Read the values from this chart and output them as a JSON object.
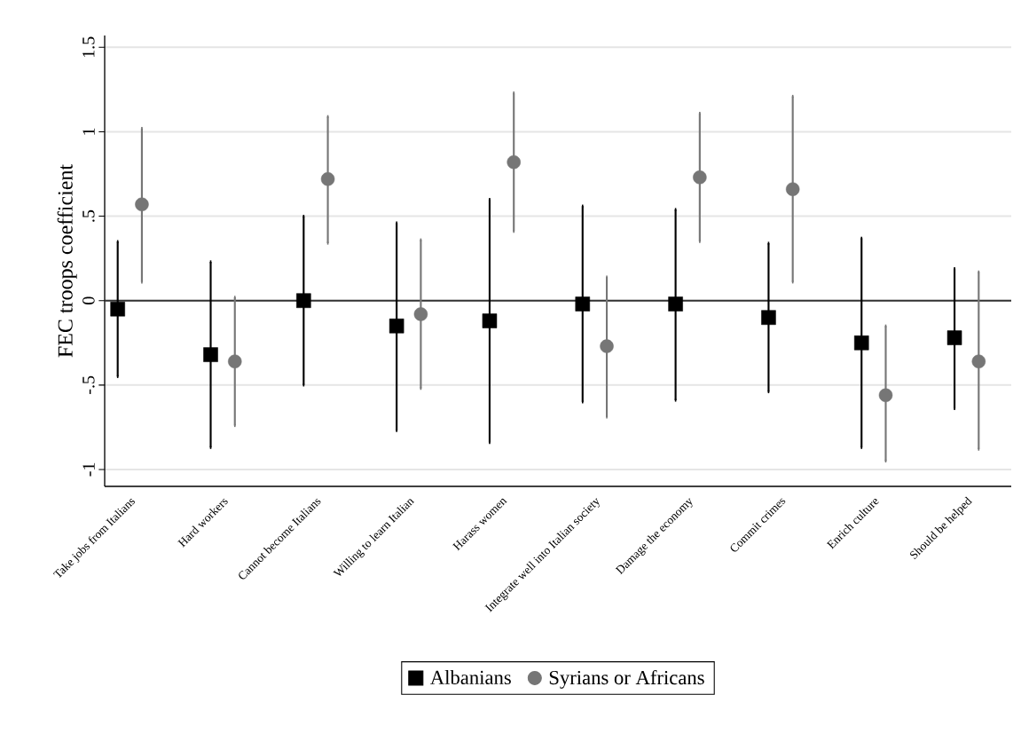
{
  "chart_data": {
    "type": "scatter",
    "categories": [
      "Take jobs from Italians",
      "Hard workers",
      "Cannot become Italians",
      "Willing to learn Italian",
      "Harass women",
      "Integrate well into Italian society",
      "Damage the economy",
      "Commit crimes",
      "Enrich culture",
      "Should be helped"
    ],
    "ylabel": "FEC troops coefficient",
    "ylim": [
      -1.1,
      1.57
    ],
    "yticks": [
      {
        "value": -1,
        "label": "-1"
      },
      {
        "value": -0.5,
        "label": "-.5"
      },
      {
        "value": 0,
        "label": "0"
      },
      {
        "value": 0.5,
        "label": ".5"
      },
      {
        "value": 1,
        "label": "1"
      },
      {
        "value": 1.5,
        "label": "1.5"
      }
    ],
    "grid": "y",
    "legend": "bottom",
    "ref_lines": [
      {
        "axis": "y",
        "value": 0,
        "color": "#333333"
      }
    ],
    "series": [
      {
        "name": "Albanians",
        "color": "#000000",
        "marker": "square",
        "values": [
          -0.05,
          -0.32,
          0.0,
          -0.15,
          -0.12,
          -0.02,
          -0.02,
          -0.1,
          -0.25,
          -0.22
        ],
        "errors": [
          [
            -0.45,
            0.35
          ],
          [
            -0.87,
            0.23
          ],
          [
            -0.5,
            0.5
          ],
          [
            -0.77,
            0.46
          ],
          [
            -0.84,
            0.6
          ],
          [
            -0.6,
            0.56
          ],
          [
            -0.59,
            0.54
          ],
          [
            -0.54,
            0.34
          ],
          [
            -0.87,
            0.37
          ],
          [
            -0.64,
            0.19
          ]
        ]
      },
      {
        "name": "Syrians or Africans",
        "color": "#767676",
        "marker": "circle",
        "values": [
          0.57,
          -0.36,
          0.72,
          -0.08,
          0.82,
          -0.27,
          0.73,
          0.66,
          -0.56,
          -0.36
        ],
        "errors": [
          [
            0.11,
            1.02
          ],
          [
            -0.74,
            0.02
          ],
          [
            0.34,
            1.09
          ],
          [
            -0.52,
            0.36
          ],
          [
            0.41,
            1.23
          ],
          [
            -0.69,
            0.14
          ],
          [
            0.35,
            1.11
          ],
          [
            0.11,
            1.21
          ],
          [
            -0.95,
            -0.15
          ],
          [
            -0.88,
            0.17
          ]
        ]
      }
    ]
  }
}
